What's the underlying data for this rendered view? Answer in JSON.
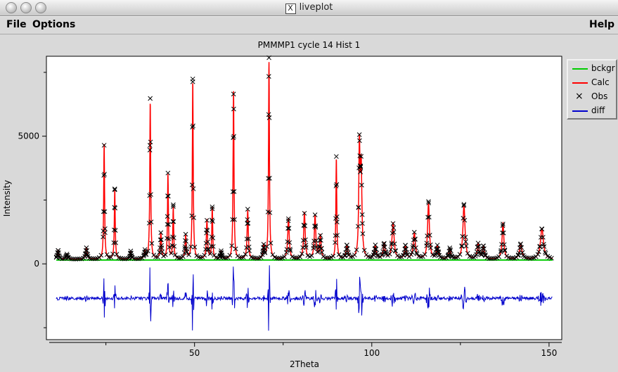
{
  "window": {
    "title": "liveplot"
  },
  "menu": {
    "file": "File",
    "options": "Options",
    "help": "Help"
  },
  "colors": {
    "bckgr": "#00cc00",
    "calc": "#ff0000",
    "obs": "#000000",
    "diff": "#0000cc"
  },
  "chart_data": {
    "type": "line",
    "title": "PMMMP1 cycle 14 Hist 1",
    "xlabel": "2Theta",
    "ylabel": "Intensity",
    "x_ticks": [
      "50",
      "100",
      "150"
    ],
    "y_ticks": [
      "0",
      "5000"
    ],
    "xlim": [
      10,
      152
    ],
    "ylim": [
      -2500,
      7800
    ],
    "legend_placement": "right",
    "legend": [
      "bckgr",
      "Calc",
      "Obs",
      "diff"
    ],
    "series": [
      {
        "name": "bckgr",
        "kind": "line",
        "baseline": 150
      },
      {
        "name": "Calc",
        "kind": "line",
        "baseline": 180
      },
      {
        "name": "Obs",
        "kind": "marker"
      },
      {
        "name": "diff",
        "kind": "line",
        "offset": -1350
      }
    ],
    "peaks": [
      [
        11.5,
        350,
        0.25
      ],
      [
        14,
        200,
        0.25
      ],
      [
        19.5,
        450,
        0.25
      ],
      [
        24.5,
        4500,
        0.15
      ],
      [
        27.5,
        2700,
        0.15
      ],
      [
        32,
        300,
        0.2
      ],
      [
        36,
        300,
        0.2
      ],
      [
        37.5,
        6100,
        0.15
      ],
      [
        40.5,
        1000,
        0.2
      ],
      [
        42.5,
        3300,
        0.15
      ],
      [
        44,
        2000,
        0.15
      ],
      [
        47.5,
        900,
        0.2
      ],
      [
        49.5,
        6900,
        0.15
      ],
      [
        53.5,
        1500,
        0.2
      ],
      [
        55,
        2000,
        0.15
      ],
      [
        57.5,
        300,
        0.2
      ],
      [
        61,
        6600,
        0.15
      ],
      [
        65,
        1900,
        0.2
      ],
      [
        69.5,
        500,
        0.2
      ],
      [
        71,
        7700,
        0.15
      ],
      [
        76.5,
        1600,
        0.25
      ],
      [
        81,
        1800,
        0.25
      ],
      [
        84,
        1700,
        0.25
      ],
      [
        85.5,
        900,
        0.25
      ],
      [
        90,
        3900,
        0.15
      ],
      [
        93,
        500,
        0.3
      ],
      [
        96.5,
        4200,
        0.2
      ],
      [
        97,
        3500,
        0.25
      ],
      [
        101,
        500,
        0.3
      ],
      [
        103.5,
        600,
        0.3
      ],
      [
        106,
        1400,
        0.35
      ],
      [
        109.5,
        500,
        0.3
      ],
      [
        112,
        1000,
        0.35
      ],
      [
        116,
        2200,
        0.3
      ],
      [
        118.5,
        500,
        0.3
      ],
      [
        122,
        400,
        0.3
      ],
      [
        126,
        2100,
        0.35
      ],
      [
        130,
        600,
        0.3
      ],
      [
        131.5,
        500,
        0.3
      ],
      [
        137,
        1400,
        0.3
      ],
      [
        142,
        600,
        0.4
      ],
      [
        148,
        1200,
        0.5
      ]
    ]
  }
}
